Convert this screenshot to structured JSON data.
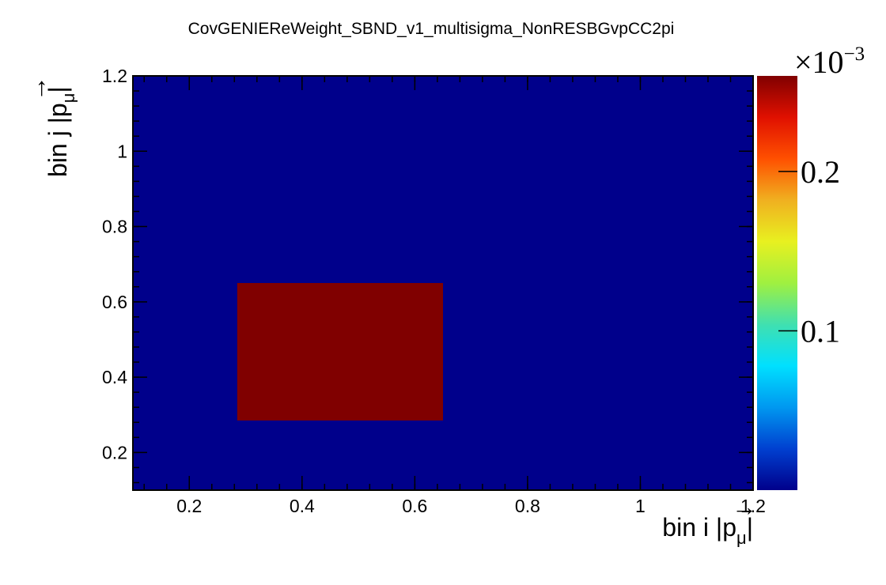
{
  "chart_data": {
    "type": "heatmap",
    "title": "CovGENIEReWeight_SBND_v1_multisigma_NonRESBGvpCC2pi",
    "xlabel": {
      "main": "bin i |p",
      "vec": "→",
      "sub": "μ",
      "close": "|"
    },
    "ylabel": {
      "main": "bin j |p",
      "vec": "→",
      "sub": "μ",
      "close": "|"
    },
    "xlim": [
      0.1,
      1.2
    ],
    "ylim": [
      0.1,
      1.2
    ],
    "x_ticks": [
      {
        "value": 0.2,
        "label": "0.2"
      },
      {
        "value": 0.4,
        "label": "0.4"
      },
      {
        "value": 0.6,
        "label": "0.6"
      },
      {
        "value": 0.8,
        "label": "0.8"
      },
      {
        "value": 1.0,
        "label": "1"
      },
      {
        "value": 1.2,
        "label": "1.2"
      }
    ],
    "y_ticks": [
      {
        "value": 0.2,
        "label": "0.2"
      },
      {
        "value": 0.4,
        "label": "0.4"
      },
      {
        "value": 0.6,
        "label": "0.6"
      },
      {
        "value": 0.8,
        "label": "0.8"
      },
      {
        "value": 1.0,
        "label": "1"
      },
      {
        "value": 1.2,
        "label": "1.2"
      }
    ],
    "background_value": 0.0,
    "cells": [
      {
        "x0": 0.285,
        "x1": 0.65,
        "y0": 0.285,
        "y1": 0.65,
        "value": 0.00026
      }
    ],
    "z_range": [
      0.0,
      0.00026
    ],
    "colorbar": {
      "multiplier_base": "×10",
      "multiplier_exp": "−3",
      "ticks": [
        {
          "value": 0.0001,
          "label": "0.1"
        },
        {
          "value": 0.0002,
          "label": "0.2"
        }
      ]
    },
    "colormap": [
      "#00008b",
      "#0040d0",
      "#0098f0",
      "#00e0ff",
      "#40e0b0",
      "#a0f040",
      "#e8f020",
      "#f0b020",
      "#ff5000",
      "#e01000",
      "#800000"
    ]
  }
}
